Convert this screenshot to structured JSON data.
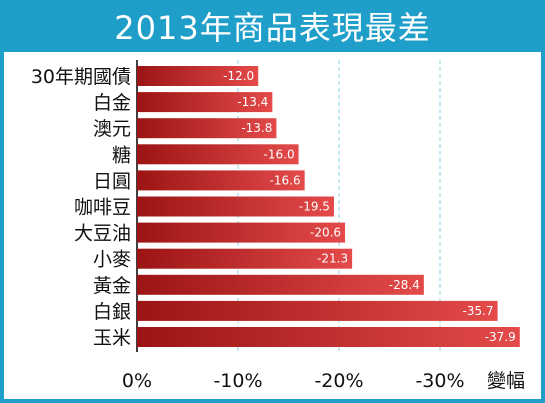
{
  "title": "2013年商品表現最差",
  "colors": {
    "frame": "#1e9ec8",
    "bar_light": "#e44a4a",
    "bar_dark": "#9c1414",
    "grid": "#8fd0e6"
  },
  "chart_data": {
    "type": "bar",
    "orientation": "horizontal",
    "title": "2013年商品表現最差",
    "xlabel": "變幅",
    "ylabel": "",
    "categories": [
      "30年期國債",
      "白金",
      "澳元",
      "糖",
      "日圓",
      "咖啡豆",
      "大豆油",
      "小麥",
      "黃金",
      "白銀",
      "玉米"
    ],
    "values": [
      -12.0,
      -13.4,
      -13.8,
      -16.0,
      -16.6,
      -19.5,
      -20.6,
      -21.3,
      -28.4,
      -35.7,
      -37.9
    ],
    "value_labels": [
      "-12.0",
      "-13.4",
      "-13.8",
      "-16.0",
      "-16.6",
      "-19.5",
      "-20.6",
      "-21.3",
      "-28.4",
      "-35.7",
      "-37.9"
    ],
    "xlim": [
      0,
      -40
    ],
    "ticks": [
      0,
      -10,
      -20,
      -30
    ],
    "tick_labels": [
      "0%",
      "-10%",
      "-20%",
      "-30%"
    ],
    "grid": true
  }
}
